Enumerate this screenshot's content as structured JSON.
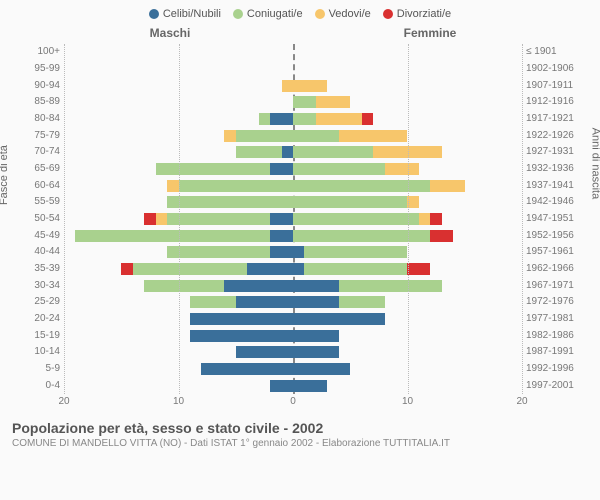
{
  "chart": {
    "type": "population-pyramid",
    "background_color": "#fafafa",
    "grid_color": "#bbbbbb",
    "centerline_color": "#888888",
    "text_color": "#666666",
    "legend": [
      {
        "label": "Celibi/Nubili",
        "color": "#3a6f9a"
      },
      {
        "label": "Coniugati/e",
        "color": "#a9d18e"
      },
      {
        "label": "Vedovi/e",
        "color": "#f7c66b"
      },
      {
        "label": "Divorziati/e",
        "color": "#d93030"
      }
    ],
    "gender_left": "Maschi",
    "gender_right": "Femmine",
    "y_left_title": "Fasce di età",
    "y_right_title": "Anni di nascita",
    "x_max": 20,
    "x_ticks": [
      20,
      10,
      0,
      10,
      20
    ],
    "rows": [
      {
        "age": "100+",
        "birth": "≤ 1901",
        "m": [
          0,
          0,
          0,
          0
        ],
        "f": [
          0,
          0,
          0,
          0
        ]
      },
      {
        "age": "95-99",
        "birth": "1902-1906",
        "m": [
          0,
          0,
          0,
          0
        ],
        "f": [
          0,
          0,
          0,
          0
        ]
      },
      {
        "age": "90-94",
        "birth": "1907-1911",
        "m": [
          0,
          0,
          1,
          0
        ],
        "f": [
          0,
          0,
          3,
          0
        ]
      },
      {
        "age": "85-89",
        "birth": "1912-1916",
        "m": [
          0,
          0,
          0,
          0
        ],
        "f": [
          0,
          2,
          3,
          0
        ]
      },
      {
        "age": "80-84",
        "birth": "1917-1921",
        "m": [
          2,
          1,
          0,
          0
        ],
        "f": [
          0,
          2,
          4,
          1
        ]
      },
      {
        "age": "75-79",
        "birth": "1922-1926",
        "m": [
          0,
          5,
          1,
          0
        ],
        "f": [
          0,
          4,
          6,
          0
        ]
      },
      {
        "age": "70-74",
        "birth": "1927-1931",
        "m": [
          1,
          4,
          0,
          0
        ],
        "f": [
          0,
          7,
          6,
          0
        ]
      },
      {
        "age": "65-69",
        "birth": "1932-1936",
        "m": [
          2,
          10,
          0,
          0
        ],
        "f": [
          0,
          8,
          3,
          0
        ]
      },
      {
        "age": "60-64",
        "birth": "1937-1941",
        "m": [
          0,
          10,
          1,
          0
        ],
        "f": [
          0,
          12,
          3,
          0
        ]
      },
      {
        "age": "55-59",
        "birth": "1942-1946",
        "m": [
          0,
          11,
          0,
          0
        ],
        "f": [
          0,
          10,
          1,
          0
        ]
      },
      {
        "age": "50-54",
        "birth": "1947-1951",
        "m": [
          2,
          9,
          1,
          1
        ],
        "f": [
          0,
          11,
          1,
          1
        ]
      },
      {
        "age": "45-49",
        "birth": "1952-1956",
        "m": [
          2,
          17,
          0,
          0
        ],
        "f": [
          0,
          12,
          0,
          2
        ]
      },
      {
        "age": "40-44",
        "birth": "1957-1961",
        "m": [
          2,
          9,
          0,
          0
        ],
        "f": [
          1,
          9,
          0,
          0
        ]
      },
      {
        "age": "35-39",
        "birth": "1962-1966",
        "m": [
          4,
          10,
          0,
          1
        ],
        "f": [
          1,
          9,
          0,
          2
        ]
      },
      {
        "age": "30-34",
        "birth": "1967-1971",
        "m": [
          6,
          7,
          0,
          0
        ],
        "f": [
          4,
          9,
          0,
          0
        ]
      },
      {
        "age": "25-29",
        "birth": "1972-1976",
        "m": [
          5,
          4,
          0,
          0
        ],
        "f": [
          4,
          4,
          0,
          0
        ]
      },
      {
        "age": "20-24",
        "birth": "1977-1981",
        "m": [
          9,
          0,
          0,
          0
        ],
        "f": [
          8,
          0,
          0,
          0
        ]
      },
      {
        "age": "15-19",
        "birth": "1982-1986",
        "m": [
          9,
          0,
          0,
          0
        ],
        "f": [
          4,
          0,
          0,
          0
        ]
      },
      {
        "age": "10-14",
        "birth": "1987-1991",
        "m": [
          5,
          0,
          0,
          0
        ],
        "f": [
          4,
          0,
          0,
          0
        ]
      },
      {
        "age": "5-9",
        "birth": "1992-1996",
        "m": [
          8,
          0,
          0,
          0
        ],
        "f": [
          5,
          0,
          0,
          0
        ]
      },
      {
        "age": "0-4",
        "birth": "1997-2001",
        "m": [
          2,
          0,
          0,
          0
        ],
        "f": [
          3,
          0,
          0,
          0
        ]
      }
    ],
    "footer_title": "Popolazione per età, sesso e stato civile - 2002",
    "footer_sub": "COMUNE DI MANDELLO VITTA (NO) - Dati ISTAT 1° gennaio 2002 - Elaborazione TUTTITALIA.IT"
  }
}
